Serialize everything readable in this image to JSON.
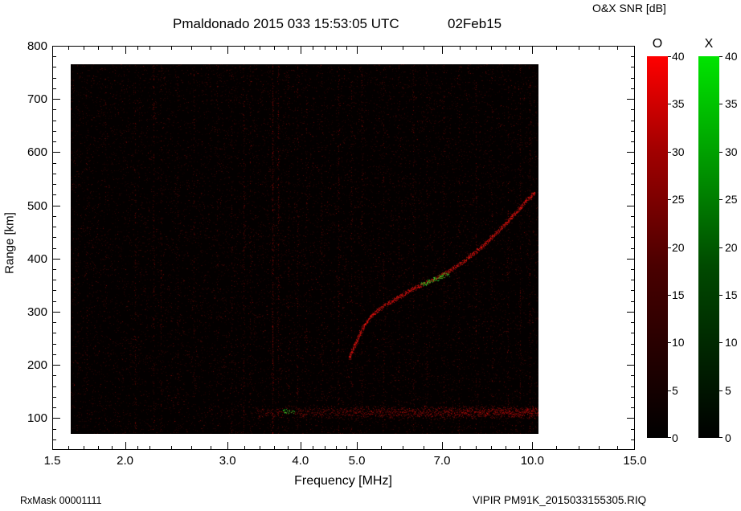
{
  "footer": {
    "left": "RxMask 00001111",
    "right": "VIPIR  PM91K_2015033155305.RIQ"
  },
  "chart_data": {
    "type": "heatmap",
    "title": "Pmaldonado 2015 033 15:53:05 UTC",
    "date_label": "02Feb15",
    "xlabel": "Frequency [MHz]",
    "ylabel": "Range [km]",
    "colorbar_title": "O&X SNR [dB]",
    "axes": {
      "x_scale": "log",
      "x_min": 1.5,
      "x_max": 15,
      "y_min": 40,
      "y_max": 800
    },
    "x_ticks": [
      {
        "v": 1.5,
        "label": "1.5"
      },
      {
        "v": 2,
        "label": "2.0"
      },
      {
        "v": 3,
        "label": "3.0"
      },
      {
        "v": 4,
        "label": "4.0"
      },
      {
        "v": 5,
        "label": "5.0"
      },
      {
        "v": 7,
        "label": "7.0"
      },
      {
        "v": 10,
        "label": "10.0"
      },
      {
        "v": 15,
        "label": "15.0"
      }
    ],
    "x_minor_ticks": [
      1.6,
      1.7,
      1.8,
      1.9,
      2.1,
      2.2,
      2.4,
      2.6,
      2.8,
      3.2,
      3.4,
      3.6,
      3.8,
      4.2,
      4.4,
      4.6,
      4.8,
      5.5,
      6.0,
      6.5,
      7.5,
      8.0,
      8.5,
      9.0,
      9.5,
      11,
      12,
      13,
      14
    ],
    "y_ticks": [
      {
        "v": 800,
        "label": "800"
      },
      {
        "v": 700,
        "label": "700"
      },
      {
        "v": 600,
        "label": "600"
      },
      {
        "v": 500,
        "label": "500"
      },
      {
        "v": 400,
        "label": "400"
      },
      {
        "v": 300,
        "label": "300"
      },
      {
        "v": 200,
        "label": "200"
      },
      {
        "v": 100,
        "label": "100"
      }
    ],
    "y_minor_step": 20,
    "colorbars": [
      {
        "label": "O",
        "ticks": [
          "0",
          "5",
          "10",
          "15",
          "20",
          "25",
          "30",
          "35",
          "40"
        ],
        "gradient": [
          "#000000",
          "#4a0000",
          "#a40000",
          "#ff0000"
        ]
      },
      {
        "label": "X",
        "ticks": [
          "0",
          "5",
          "10",
          "15",
          "20",
          "25",
          "30",
          "35",
          "40"
        ],
        "gradient": [
          "#000000",
          "#004a00",
          "#00a400",
          "#00e400"
        ]
      }
    ],
    "data_extent": {
      "f_min": 1.61,
      "f_max": 10.25,
      "range_min": 70,
      "range_max": 765
    },
    "rfi_stripes": [
      {
        "f": 1.72,
        "a": 0.25
      },
      {
        "f": 1.85,
        "a": 0.2
      },
      {
        "f": 2.08,
        "a": 0.3
      },
      {
        "f": 2.24,
        "a": 0.45
      },
      {
        "f": 2.3,
        "a": 0.35
      },
      {
        "f": 2.46,
        "a": 0.25
      },
      {
        "f": 2.62,
        "a": 0.3
      },
      {
        "f": 2.88,
        "a": 0.25
      },
      {
        "f": 3.05,
        "a": 0.3
      },
      {
        "f": 3.2,
        "a": 0.5
      },
      {
        "f": 3.28,
        "a": 0.35
      },
      {
        "f": 3.58,
        "a": 0.95
      },
      {
        "f": 3.66,
        "a": 0.6
      },
      {
        "f": 3.82,
        "a": 0.3
      },
      {
        "f": 3.95,
        "a": 0.45
      },
      {
        "f": 4.1,
        "a": 0.3
      },
      {
        "f": 4.35,
        "a": 0.4
      },
      {
        "f": 4.65,
        "a": 0.45
      },
      {
        "f": 4.9,
        "a": 0.3
      },
      {
        "f": 5.1,
        "a": 0.35
      },
      {
        "f": 5.55,
        "a": 0.3
      },
      {
        "f": 5.9,
        "a": 0.3
      },
      {
        "f": 6.25,
        "a": 0.4
      },
      {
        "f": 6.6,
        "a": 0.3
      },
      {
        "f": 7.05,
        "a": 0.35
      },
      {
        "f": 7.5,
        "a": 0.3
      },
      {
        "f": 8.0,
        "a": 0.35
      },
      {
        "f": 8.55,
        "a": 0.3
      },
      {
        "f": 9.1,
        "a": 0.35
      },
      {
        "f": 9.55,
        "a": 0.4
      },
      {
        "f": 9.9,
        "a": 0.45
      }
    ],
    "e_layer": {
      "f_faint_start": 2.6,
      "f_start": 3.35,
      "f_end": 10.25,
      "range_center": 110,
      "range_spread": 9
    },
    "f_trace": {
      "points": [
        [
          4.85,
          213
        ],
        [
          4.92,
          228
        ],
        [
          5.0,
          245
        ],
        [
          5.08,
          262
        ],
        [
          5.18,
          278
        ],
        [
          5.3,
          292
        ],
        [
          5.45,
          303
        ],
        [
          5.62,
          313
        ],
        [
          5.8,
          322
        ],
        [
          6.0,
          331
        ],
        [
          6.2,
          340
        ],
        [
          6.4,
          348
        ],
        [
          6.6,
          355
        ],
        [
          6.8,
          361
        ],
        [
          7.0,
          368
        ],
        [
          7.2,
          376
        ],
        [
          7.4,
          384
        ],
        [
          7.6,
          393
        ],
        [
          7.8,
          402
        ],
        [
          8.0,
          412
        ],
        [
          8.2,
          422
        ],
        [
          8.4,
          432
        ],
        [
          8.6,
          443
        ],
        [
          8.8,
          454
        ],
        [
          9.0,
          465
        ],
        [
          9.2,
          476
        ],
        [
          9.4,
          487
        ],
        [
          9.6,
          498
        ],
        [
          9.8,
          509
        ],
        [
          10.0,
          518
        ],
        [
          10.12,
          524
        ]
      ]
    },
    "x_mode_echoes": [
      {
        "f": 6.52,
        "range": 352,
        "n": 22
      },
      {
        "f": 6.68,
        "range": 356,
        "n": 28
      },
      {
        "f": 6.84,
        "range": 361,
        "n": 24
      },
      {
        "f": 7.0,
        "range": 366,
        "n": 26
      },
      {
        "f": 7.12,
        "range": 369,
        "n": 18
      },
      {
        "f": 3.78,
        "range": 112,
        "n": 20
      },
      {
        "f": 3.86,
        "range": 110,
        "n": 12
      }
    ]
  }
}
